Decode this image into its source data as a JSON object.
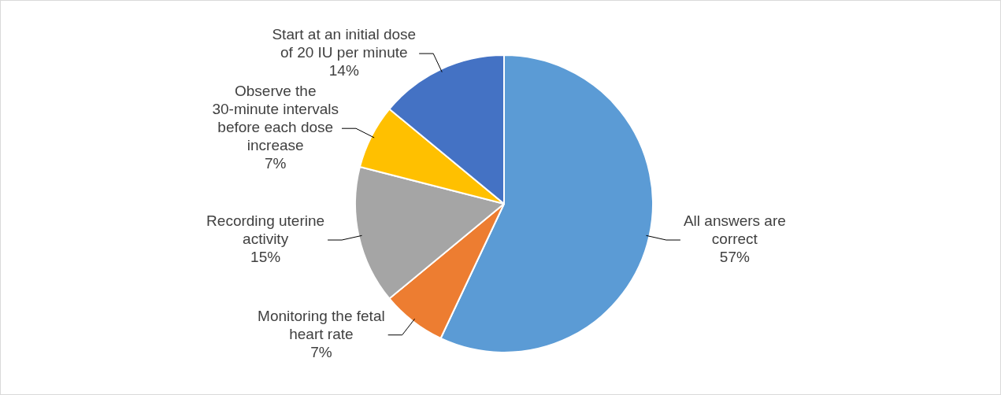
{
  "chart_data": {
    "type": "pie",
    "categories": [
      "All answers are correct",
      "Monitoring the fetal heart rate",
      "Recording uterine activity",
      "Observe the 30-minute intervals before each dose increase",
      "Start at an initial dose of 20 IU per minute"
    ],
    "values": [
      57,
      7,
      15,
      7,
      14
    ],
    "colors": [
      "#5b9bd5",
      "#ed7d31",
      "#a5a5a5",
      "#ffc000",
      "#4472c4"
    ],
    "value_labels": [
      "57%",
      "7%",
      "15%",
      "7%",
      "14%"
    ],
    "legend": false
  }
}
